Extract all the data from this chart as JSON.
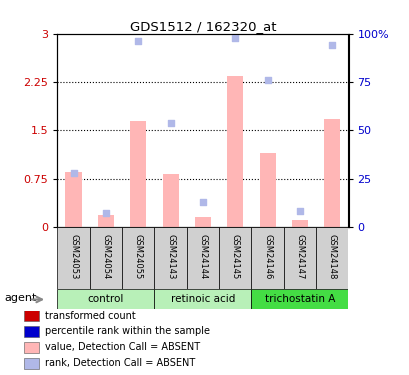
{
  "title": "GDS1512 / 162320_at",
  "samples": [
    "GSM24053",
    "GSM24054",
    "GSM24055",
    "GSM24143",
    "GSM24144",
    "GSM24145",
    "GSM24146",
    "GSM24147",
    "GSM24148"
  ],
  "bar_values": [
    0.85,
    0.18,
    1.65,
    0.82,
    0.16,
    2.35,
    1.15,
    0.1,
    1.67
  ],
  "bar_color_absent": "#ffb6b6",
  "scatter_rank": [
    28,
    7,
    96,
    54,
    13,
    98,
    76,
    8,
    94
  ],
  "scatter_color_absent": "#b0b8e8",
  "absent_flags": [
    true,
    true,
    true,
    true,
    true,
    true,
    true,
    true,
    true
  ],
  "ylim_left": [
    0,
    3
  ],
  "ylim_right": [
    0,
    100
  ],
  "yticks_left": [
    0,
    0.75,
    1.5,
    2.25,
    3.0
  ],
  "yticks_right": [
    0,
    25,
    50,
    75,
    100
  ],
  "ytick_labels_left": [
    "0",
    "0.75",
    "1.5",
    "2.25",
    "3"
  ],
  "ytick_labels_right": [
    "0",
    "25",
    "50",
    "75",
    "100%"
  ],
  "hlines": [
    0.75,
    1.5,
    2.25
  ],
  "legend_items": [
    {
      "label": "transformed count",
      "color": "#cc0000"
    },
    {
      "label": "percentile rank within the sample",
      "color": "#0000cc"
    },
    {
      "label": "value, Detection Call = ABSENT",
      "color": "#ffb6b6"
    },
    {
      "label": "rank, Detection Call = ABSENT",
      "color": "#b0b8e8"
    }
  ],
  "group_defs": [
    {
      "label": "control",
      "start": 0,
      "end": 2,
      "color": "#b8f0b8"
    },
    {
      "label": "retinoic acid",
      "start": 3,
      "end": 5,
      "color": "#b8f0b8"
    },
    {
      "label": "trichostatin A",
      "start": 6,
      "end": 8,
      "color": "#44dd44"
    }
  ],
  "tick_label_color_left": "#cc0000",
  "tick_label_color_right": "#0000cc",
  "bar_width": 0.5
}
